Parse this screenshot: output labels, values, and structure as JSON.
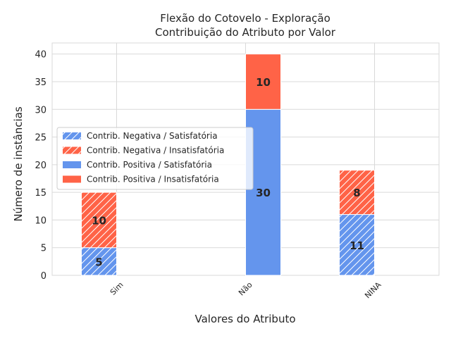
{
  "chart_data": {
    "type": "bar",
    "stacked": true,
    "title": "Flexão do Cotovelo - Exploração",
    "subtitle": "Contribuição do Atributo por Valor",
    "xlabel": "Valores do Atributo",
    "ylabel": "Número de instâncias",
    "categories": [
      "Sim",
      "Não",
      "NINA"
    ],
    "ylim": [
      0,
      42
    ],
    "yticks": [
      0,
      5,
      10,
      15,
      20,
      25,
      30,
      35,
      40
    ],
    "grid": true,
    "legend_position": "center-left",
    "groups": [
      {
        "name": "Contrib. Negativa",
        "hatch": true,
        "series": [
          {
            "name": "Contrib. Negativa / Satisfatória",
            "color": "#6495ED",
            "values": [
              5,
              0,
              11
            ]
          },
          {
            "name": "Contrib. Negativa / Insatisfatória",
            "color": "#FF6347",
            "values": [
              10,
              0,
              8
            ]
          }
        ]
      },
      {
        "name": "Contrib. Positiva",
        "hatch": false,
        "series": [
          {
            "name": "Contrib. Positiva / Satisfatória",
            "color": "#6495ED",
            "values": [
              0,
              30,
              0
            ]
          },
          {
            "name": "Contrib. Positiva / Insatisfatória",
            "color": "#FF6347",
            "values": [
              0,
              10,
              0
            ]
          }
        ]
      }
    ]
  }
}
